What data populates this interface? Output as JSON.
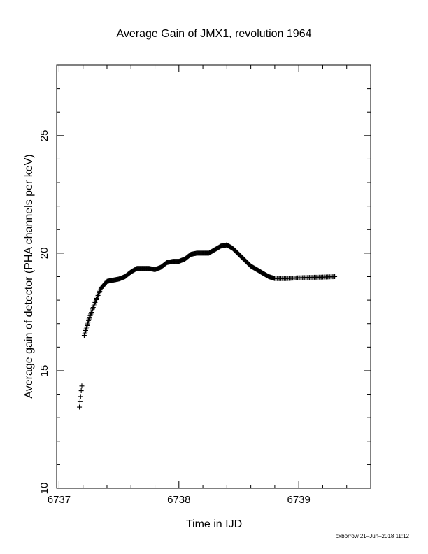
{
  "chart_data": {
    "type": "scatter",
    "title": "Average Gain of JMX1, revolution 1964",
    "xlabel": "Time in IJD",
    "ylabel": "Average gain of detector (PHA channels per keV)",
    "footer": "oxborrow 21–Jun–2018 11:12",
    "xlim": [
      6736.98,
      6739.6
    ],
    "ylim": [
      10,
      28
    ],
    "xticks": [
      6737,
      6738,
      6739
    ],
    "yticks": [
      10,
      15,
      20,
      25
    ],
    "grid": false,
    "marker": "plus",
    "series": [
      {
        "x": [
          6737.17,
          6737.175,
          6737.18,
          6737.185,
          6737.19,
          6737.21,
          6737.25,
          6737.3,
          6737.35,
          6737.4,
          6737.45,
          6737.5,
          6737.55,
          6737.6,
          6737.65,
          6737.7,
          6737.75,
          6737.8,
          6737.85,
          6737.9,
          6737.95,
          6738.0,
          6738.05,
          6738.1,
          6738.15,
          6738.2,
          6738.25,
          6738.3,
          6738.35,
          6738.4,
          6738.45,
          6738.5,
          6738.55,
          6738.6,
          6738.65,
          6738.7,
          6738.75,
          6738.8,
          6738.9,
          6739.0,
          6739.1,
          6739.2,
          6739.3
        ],
        "y": [
          13.45,
          13.7,
          13.9,
          14.15,
          14.35,
          16.5,
          17.2,
          17.9,
          18.5,
          18.8,
          18.85,
          18.9,
          19.0,
          19.2,
          19.35,
          19.35,
          19.35,
          19.3,
          19.4,
          19.6,
          19.65,
          19.65,
          19.75,
          19.95,
          20.0,
          20.0,
          20.0,
          20.15,
          20.3,
          20.35,
          20.2,
          19.95,
          19.7,
          19.45,
          19.3,
          19.15,
          19.0,
          18.92,
          18.92,
          18.95,
          18.97,
          18.98,
          19.0
        ]
      }
    ]
  }
}
